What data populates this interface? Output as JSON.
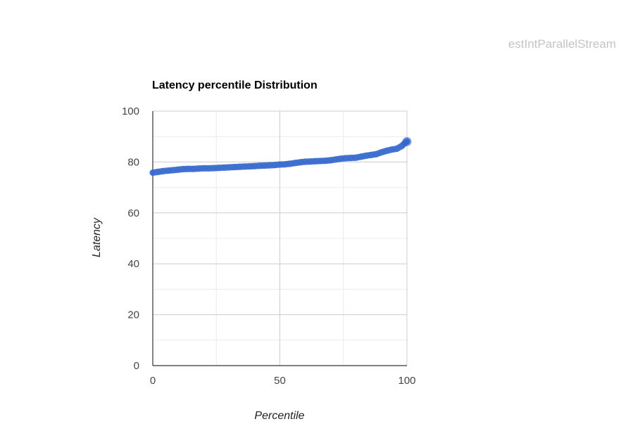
{
  "header": {
    "text": "estIntParallelStream"
  },
  "chart_data": {
    "type": "line",
    "title": "Latency percentile Distribution",
    "xlabel": "Percentile",
    "ylabel": "Latency",
    "xlim": [
      0,
      100
    ],
    "ylim": [
      0,
      100
    ],
    "x_ticks": [
      "0",
      "50",
      "100"
    ],
    "y_ticks": [
      "0",
      "20",
      "40",
      "60",
      "80",
      "100"
    ],
    "grid": true,
    "legend": "none",
    "color": "#3366cc",
    "series": [
      {
        "points": [
          [
            0,
            75.8
          ],
          [
            2,
            76.1
          ],
          [
            4,
            76.4
          ],
          [
            6,
            76.6
          ],
          [
            8,
            76.8
          ],
          [
            10,
            77.0
          ],
          [
            12,
            77.2
          ],
          [
            14,
            77.3
          ],
          [
            16,
            77.3
          ],
          [
            18,
            77.4
          ],
          [
            20,
            77.5
          ],
          [
            22,
            77.5
          ],
          [
            24,
            77.6
          ],
          [
            26,
            77.7
          ],
          [
            28,
            77.8
          ],
          [
            30,
            77.9
          ],
          [
            32,
            78.0
          ],
          [
            34,
            78.1
          ],
          [
            36,
            78.2
          ],
          [
            38,
            78.3
          ],
          [
            40,
            78.4
          ],
          [
            42,
            78.5
          ],
          [
            44,
            78.6
          ],
          [
            46,
            78.7
          ],
          [
            48,
            78.8
          ],
          [
            50,
            79.0
          ],
          [
            52,
            79.1
          ],
          [
            54,
            79.3
          ],
          [
            56,
            79.6
          ],
          [
            58,
            79.9
          ],
          [
            60,
            80.1
          ],
          [
            62,
            80.2
          ],
          [
            64,
            80.3
          ],
          [
            66,
            80.4
          ],
          [
            68,
            80.5
          ],
          [
            70,
            80.7
          ],
          [
            72,
            81.0
          ],
          [
            74,
            81.3
          ],
          [
            76,
            81.5
          ],
          [
            78,
            81.6
          ],
          [
            80,
            81.7
          ],
          [
            82,
            82.1
          ],
          [
            84,
            82.5
          ],
          [
            86,
            82.8
          ],
          [
            88,
            83.1
          ],
          [
            90,
            83.8
          ],
          [
            92,
            84.4
          ],
          [
            94,
            84.9
          ],
          [
            96,
            85.2
          ],
          [
            98,
            86.3
          ],
          [
            99,
            87.3
          ],
          [
            100,
            88.0
          ]
        ]
      }
    ]
  }
}
